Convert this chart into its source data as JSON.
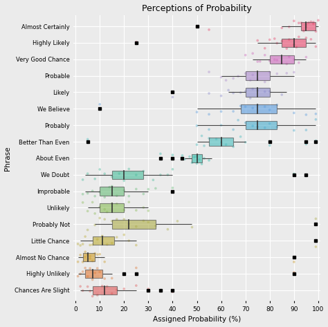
{
  "title": "Perceptions of Probability",
  "xlabel": "Assigned Probability (%)",
  "ylabel": "Phrase",
  "phrases": [
    "Almost Certainly",
    "Highly Likely",
    "Very Good Chance",
    "Probable",
    "Likely",
    "We Believe",
    "Probably",
    "Better Than Even",
    "About Even",
    "We Doubt",
    "Improbable",
    "Unlikely",
    "Probably Not",
    "Little Chance",
    "Almost No Chance",
    "Highly Unlikely",
    "Chances Are Slight"
  ],
  "box_data": {
    "Almost Certainly": {
      "whislo": 85,
      "q1": 93,
      "med": 95,
      "q3": 99,
      "whishi": 100,
      "fliers": [
        50
      ]
    },
    "Highly Likely": {
      "whislo": 75,
      "q1": 85,
      "med": 90,
      "q3": 95,
      "whishi": 99,
      "fliers": [
        25
      ]
    },
    "Very Good Chance": {
      "whislo": 73,
      "q1": 80,
      "med": 85,
      "q3": 90,
      "whishi": 95,
      "fliers": []
    },
    "Probable": {
      "whislo": 60,
      "q1": 70,
      "med": 75,
      "q3": 80,
      "whishi": 90,
      "fliers": []
    },
    "Likely": {
      "whislo": 63,
      "q1": 70,
      "med": 75,
      "q3": 80,
      "whishi": 87,
      "fliers": [
        40
      ]
    },
    "We Believe": {
      "whislo": 50,
      "q1": 68,
      "med": 75,
      "q3": 83,
      "whishi": 99,
      "fliers": [
        10
      ]
    },
    "Probably": {
      "whislo": 50,
      "q1": 70,
      "med": 75,
      "q3": 83,
      "whishi": 99,
      "fliers": []
    },
    "Better Than Even": {
      "whislo": 50,
      "q1": 55,
      "med": 60,
      "q3": 65,
      "whishi": 70,
      "fliers": [
        5,
        80,
        95,
        99
      ]
    },
    "About Even": {
      "whislo": 45,
      "q1": 48,
      "med": 50,
      "q3": 52,
      "whishi": 56,
      "fliers": [
        35,
        40,
        44
      ]
    },
    "We Doubt": {
      "whislo": 4,
      "q1": 15,
      "med": 20,
      "q3": 28,
      "whishi": 40,
      "fliers": [
        90,
        95
      ]
    },
    "Improbable": {
      "whislo": 4,
      "q1": 10,
      "med": 15,
      "q3": 20,
      "whishi": 30,
      "fliers": [
        40
      ]
    },
    "Unlikely": {
      "whislo": 5,
      "q1": 10,
      "med": 15,
      "q3": 20,
      "whishi": 30,
      "fliers": []
    },
    "Probably Not": {
      "whislo": 8,
      "q1": 15,
      "med": 22,
      "q3": 33,
      "whishi": 48,
      "fliers": [
        99
      ]
    },
    "Little Chance": {
      "whislo": 2,
      "q1": 7,
      "med": 11,
      "q3": 16,
      "whishi": 25,
      "fliers": [
        99
      ]
    },
    "Almost No Chance": {
      "whislo": 1,
      "q1": 3,
      "med": 5,
      "q3": 8,
      "whishi": 12,
      "fliers": [
        90
      ]
    },
    "Highly Unlikely": {
      "whislo": 1,
      "q1": 4,
      "med": 7,
      "q3": 11,
      "whishi": 15,
      "fliers": [
        20,
        25,
        90
      ]
    },
    "Chances Are Slight": {
      "whislo": 2,
      "q1": 7,
      "med": 12,
      "q3": 17,
      "whishi": 25,
      "fliers": [
        30,
        35,
        40
      ]
    }
  },
  "colors": {
    "Almost Certainly": "#E8436A",
    "Highly Likely": "#E8436A",
    "Very Good Chance": "#CC66BB",
    "Probable": "#AA88CC",
    "Likely": "#8888CC",
    "We Believe": "#5599DD",
    "Probably": "#44AACC",
    "Better Than Even": "#44BBBB",
    "About Even": "#33BBAA",
    "We Doubt": "#44BB99",
    "Improbable": "#66BB77",
    "Unlikely": "#88BB55",
    "Probably Not": "#AAAA44",
    "Little Chance": "#BBAA33",
    "Almost No Chance": "#CC9922",
    "Highly Unlikely": "#DD7733",
    "Chances Are Slight": "#DD5555"
  },
  "scatter_seeds": {
    "Almost Certainly": [
      93,
      95,
      97,
      98,
      99,
      100,
      92,
      96,
      94,
      88,
      85,
      90,
      95,
      98,
      50,
      55
    ],
    "Highly Likely": [
      25,
      78,
      82,
      85,
      88,
      90,
      92,
      95,
      97,
      99,
      83,
      87,
      91,
      75,
      80
    ],
    "Very Good Chance": [
      73,
      76,
      80,
      82,
      85,
      87,
      90,
      92,
      95,
      83,
      78,
      88,
      75,
      70
    ],
    "Probable": [
      55,
      60,
      65,
      70,
      72,
      75,
      78,
      80,
      83,
      87,
      90,
      67,
      73,
      62
    ],
    "Likely": [
      40,
      63,
      68,
      70,
      73,
      75,
      78,
      80,
      85,
      72,
      65,
      60,
      55
    ],
    "We Believe": [
      10,
      50,
      55,
      60,
      65,
      70,
      73,
      75,
      78,
      80,
      83,
      90,
      95,
      99,
      68
    ],
    "Probably": [
      50,
      55,
      60,
      65,
      70,
      73,
      75,
      78,
      80,
      83,
      90,
      95,
      99,
      67
    ],
    "Better Than Even": [
      5,
      50,
      52,
      55,
      58,
      60,
      62,
      65,
      68,
      70,
      80,
      95,
      99,
      53
    ],
    "About Even": [
      35,
      40,
      44,
      45,
      47,
      49,
      50,
      50,
      51,
      52,
      53,
      55,
      48
    ],
    "We Doubt": [
      3,
      5,
      8,
      10,
      12,
      15,
      18,
      20,
      22,
      25,
      28,
      32,
      35,
      38,
      40,
      90,
      95
    ],
    "Improbable": [
      3,
      5,
      7,
      10,
      12,
      14,
      15,
      17,
      20,
      22,
      25,
      28,
      30,
      33,
      40,
      8
    ],
    "Unlikely": [
      3,
      5,
      8,
      10,
      12,
      15,
      17,
      20,
      22,
      25,
      28,
      30,
      7,
      13
    ],
    "Probably Not": [
      5,
      8,
      10,
      12,
      15,
      17,
      20,
      22,
      25,
      28,
      30,
      33,
      38,
      42,
      48,
      99
    ],
    "Little Chance": [
      1,
      2,
      4,
      6,
      7,
      9,
      11,
      13,
      15,
      17,
      20,
      22,
      25,
      99,
      3
    ],
    "Almost No Chance": [
      1,
      2,
      3,
      4,
      5,
      6,
      7,
      8,
      9,
      10,
      12,
      90,
      4,
      6
    ],
    "Highly Unlikely": [
      1,
      2,
      3,
      4,
      5,
      6,
      7,
      8,
      10,
      12,
      15,
      20,
      25,
      90,
      9
    ],
    "Chances Are Slight": [
      2,
      3,
      5,
      7,
      9,
      11,
      13,
      15,
      17,
      20,
      25,
      30,
      35,
      40,
      6
    ]
  },
  "xlim": [
    -1,
    101
  ],
  "xticks": [
    0,
    10,
    20,
    30,
    40,
    50,
    60,
    70,
    80,
    90,
    100
  ],
  "bg_color": "#EBEBEB",
  "grid_color": "#FFFFFF"
}
